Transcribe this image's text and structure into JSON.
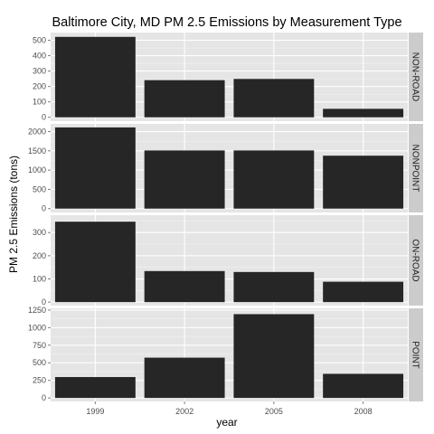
{
  "chart_data": {
    "type": "bar",
    "title": "Baltimore City, MD PM 2.5 Emissions by Measurement Type",
    "xlabel": "year",
    "ylabel": "PM 2.5 Emissions (tons)",
    "categories": [
      "1999",
      "2002",
      "2005",
      "2008"
    ],
    "grid": true,
    "facet_strip_side": "right",
    "colors": {
      "bar": "#262626",
      "panel_bg": "#e5e5e5",
      "strip_bg": "#cccccc",
      "grid": "#ffffff"
    },
    "panels": [
      {
        "name": "NON-ROAD",
        "values": [
          522,
          241,
          249,
          55
        ],
        "ylim": [
          -25,
          550
        ],
        "yticks": [
          0,
          100,
          200,
          300,
          400,
          500
        ],
        "ytick_labels": [
          "0",
          "100",
          "200",
          "300",
          "400",
          "500"
        ]
      },
      {
        "name": "NONPOINT",
        "values": [
          2108,
          1510,
          1510,
          1374
        ],
        "ylim": [
          -100,
          2200
        ],
        "yticks": [
          0,
          500,
          1000,
          1500,
          2000
        ],
        "ytick_labels": [
          "0",
          "500",
          "1000",
          "1500",
          "2000"
        ]
      },
      {
        "name": "ON-ROAD",
        "values": [
          347,
          134,
          130,
          88
        ],
        "ylim": [
          -15,
          375
        ],
        "yticks": [
          0,
          100,
          200,
          300
        ],
        "ytick_labels": [
          "0",
          "100",
          "200",
          "300"
        ]
      },
      {
        "name": "POINT",
        "values": [
          297,
          573,
          1192,
          343
        ],
        "ylim": [
          -50,
          1275
        ],
        "yticks": [
          0,
          250,
          500,
          750,
          1000,
          1250
        ],
        "ytick_labels": [
          "0",
          "250",
          "500",
          "750",
          "1000",
          "1250"
        ]
      }
    ]
  }
}
